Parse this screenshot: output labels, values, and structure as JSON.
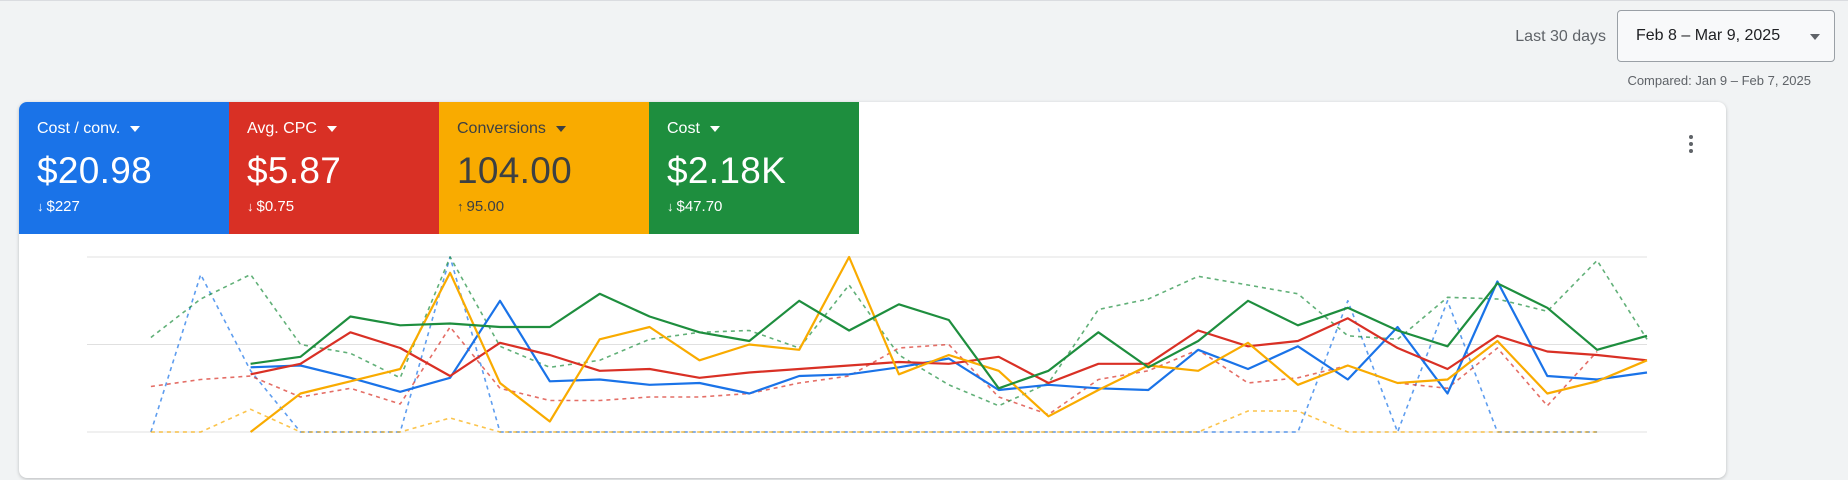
{
  "header": {
    "range_label": "Last 30 days",
    "date_range": "Feb 8 – Mar 9, 2025",
    "compared": "Compared: Jan 9 – Feb 7, 2025"
  },
  "metrics": [
    {
      "label": "Cost / conv.",
      "value": "$20.98",
      "delta": "$227",
      "direction": "down",
      "color": "#1a73e8"
    },
    {
      "label": "Avg. CPC",
      "value": "$5.87",
      "delta": "$0.75",
      "direction": "down",
      "color": "#d93025"
    },
    {
      "label": "Conversions",
      "value": "104.00",
      "delta": "95.00",
      "direction": "up",
      "color": "#f9ab00"
    },
    {
      "label": "Cost",
      "value": "$2.18K",
      "delta": "$47.70",
      "direction": "down",
      "color": "#1e8e3e"
    }
  ],
  "icons": {
    "menu": "more-vert-icon",
    "caret": "dropdown-caret-icon",
    "arrow_down": "arrow-down-icon",
    "arrow_up": "arrow-up-icon"
  },
  "chart_data": {
    "type": "line",
    "ylim": [
      0,
      100
    ],
    "grid": true,
    "x": [
      0,
      1,
      2,
      3,
      4,
      5,
      6,
      7,
      8,
      9,
      10,
      11,
      12,
      13,
      14,
      15,
      16,
      17,
      18,
      19,
      20,
      21,
      22,
      23,
      24,
      25,
      26,
      27,
      28,
      29,
      30,
      31
    ],
    "series": [
      {
        "color": "#1a73e8",
        "style": "solid",
        "values": [
          null,
          null,
          null,
          37,
          38,
          31,
          23,
          31,
          75,
          29,
          30,
          27,
          28,
          22,
          32,
          33,
          37,
          42,
          24,
          27,
          25,
          24,
          47,
          36,
          49,
          30,
          60,
          22,
          86,
          32,
          30,
          34
        ]
      },
      {
        "color": "#d93025",
        "style": "solid",
        "values": [
          null,
          null,
          null,
          33,
          39,
          57,
          48,
          32,
          51,
          44,
          35,
          36,
          31,
          34,
          36,
          38,
          40,
          39,
          43,
          28,
          39,
          39,
          58,
          49,
          52,
          65,
          48,
          36,
          55,
          46,
          44,
          41
        ]
      },
      {
        "color": "#f9ab00",
        "style": "solid",
        "values": [
          null,
          null,
          null,
          0,
          22,
          29,
          36,
          91,
          28,
          6,
          53,
          60,
          41,
          50,
          47,
          100,
          33,
          44,
          35,
          9,
          24,
          38,
          35,
          51,
          27,
          38,
          28,
          30,
          52,
          22,
          29,
          41
        ]
      },
      {
        "color": "#1e8e3e",
        "style": "solid",
        "values": [
          null,
          null,
          null,
          39,
          43,
          66,
          61,
          62,
          60,
          60,
          79,
          66,
          57,
          52,
          75,
          58,
          73,
          64,
          25,
          35,
          57,
          37,
          52,
          75,
          61,
          71,
          58,
          49,
          85,
          71,
          47,
          55
        ]
      },
      {
        "color": "#1a73e8",
        "style": "dashed",
        "values": [
          null,
          0,
          90,
          35,
          0,
          0,
          0,
          100,
          0,
          0,
          0,
          0,
          0,
          0,
          0,
          0,
          0,
          0,
          0,
          0,
          0,
          0,
          0,
          0,
          0,
          75,
          0,
          75,
          0,
          0,
          0,
          null
        ]
      },
      {
        "color": "#d93025",
        "style": "dashed",
        "values": [
          null,
          26,
          30,
          32,
          20,
          25,
          16,
          60,
          25,
          18,
          18,
          20,
          20,
          22,
          28,
          32,
          48,
          50,
          20,
          10,
          30,
          35,
          47,
          28,
          31,
          38,
          28,
          25,
          48,
          15,
          46,
          null
        ]
      },
      {
        "color": "#f9ab00",
        "style": "dashed",
        "values": [
          null,
          0,
          0,
          13,
          0,
          0,
          0,
          8,
          0,
          0,
          0,
          0,
          0,
          0,
          0,
          0,
          0,
          0,
          0,
          0,
          0,
          0,
          0,
          12,
          12,
          0,
          0,
          0,
          0,
          0,
          0,
          null
        ]
      },
      {
        "color": "#1e8e3e",
        "style": "dashed",
        "values": [
          null,
          54,
          76,
          90,
          50,
          45,
          31,
          100,
          49,
          37,
          41,
          53,
          57,
          58,
          48,
          84,
          44,
          27,
          15,
          28,
          70,
          76,
          89,
          84,
          79,
          55,
          53,
          77,
          76,
          69,
          98,
          53
        ]
      }
    ]
  }
}
